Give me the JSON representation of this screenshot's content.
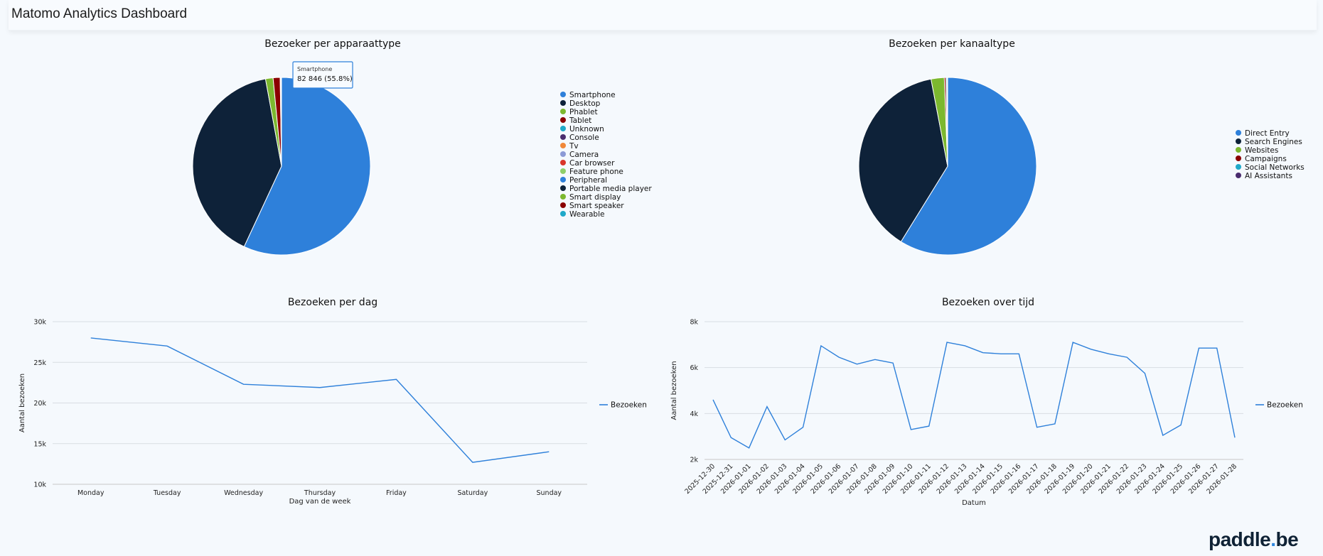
{
  "header": {
    "title": "Matomo Analytics Dashboard"
  },
  "footer": {
    "brand": "paddle",
    "dot": ".",
    "tld": "be"
  },
  "chart_data": [
    {
      "id": "device",
      "type": "pie",
      "title": "Bezoeker per apparaattype",
      "slices": [
        {
          "label": "Smartphone",
          "value": 82846,
          "percent": 55.8,
          "color": "#2e80da"
        },
        {
          "label": "Desktop",
          "value": 58500,
          "percent": 39.4,
          "color": "#0e2239"
        },
        {
          "label": "Phablet",
          "value": 2000,
          "percent": 1.35,
          "color": "#7cb82f"
        },
        {
          "label": "Tablet",
          "value": 1850,
          "percent": 1.25,
          "color": "#8b0000"
        },
        {
          "label": "Unknown",
          "value": 200,
          "percent": 0.13,
          "color": "#1fa9c9"
        },
        {
          "label": "Console",
          "value": 60,
          "percent": 0.04,
          "color": "#4a2c6e"
        },
        {
          "label": "Tv",
          "value": 40,
          "percent": 0.03,
          "color": "#f0883a"
        },
        {
          "label": "Camera",
          "value": 10,
          "percent": 0.01,
          "color": "#8c9ad6"
        },
        {
          "label": "Car browser",
          "value": 10,
          "percent": 0.01,
          "color": "#d9352a"
        },
        {
          "label": "Feature phone",
          "value": 10,
          "percent": 0.01,
          "color": "#8fcf6a"
        },
        {
          "label": "Peripheral",
          "value": 5,
          "percent": 0.0,
          "color": "#2e80da"
        },
        {
          "label": "Portable media player",
          "value": 5,
          "percent": 0.0,
          "color": "#0e2239"
        },
        {
          "label": "Smart display",
          "value": 5,
          "percent": 0.0,
          "color": "#7cb82f"
        },
        {
          "label": "Smart speaker",
          "value": 5,
          "percent": 0.0,
          "color": "#8b0000"
        },
        {
          "label": "Wearable",
          "value": 5,
          "percent": 0.0,
          "color": "#1fa9c9"
        }
      ],
      "tooltip": {
        "label": "Smartphone",
        "value": "82 846 (55.8%)"
      }
    },
    {
      "id": "channel",
      "type": "pie",
      "title": "Bezoeken per kanaaltype",
      "slices": [
        {
          "label": "Direct Entry",
          "value": 58.8,
          "color": "#2e80da"
        },
        {
          "label": "Search Engines",
          "value": 38.2,
          "color": "#0e2239"
        },
        {
          "label": "Websites",
          "value": 2.4,
          "color": "#7cb82f"
        },
        {
          "label": "Campaigns",
          "value": 0.3,
          "color": "#8b0000"
        },
        {
          "label": "Social Networks",
          "value": 0.2,
          "color": "#1fa9c9"
        },
        {
          "label": "AI Assistants",
          "value": 0.1,
          "color": "#4a2c6e"
        }
      ]
    },
    {
      "id": "perday",
      "type": "line",
      "title": "Bezoeken per dag",
      "categories": [
        "Monday",
        "Tuesday",
        "Wednesday",
        "Thursday",
        "Friday",
        "Saturday",
        "Sunday"
      ],
      "series": [
        {
          "name": "Bezoeken",
          "color": "#2e80da",
          "values": [
            28000,
            27000,
            22300,
            21900,
            22900,
            12700,
            14000
          ]
        }
      ],
      "xlabel": "Dag van de week",
      "ylabel": "Aantal bezoeken",
      "ylim": [
        10000,
        30000
      ],
      "yticks": [
        {
          "v": 10000,
          "t": "10k"
        },
        {
          "v": 15000,
          "t": "15k"
        },
        {
          "v": 20000,
          "t": "20k"
        },
        {
          "v": 25000,
          "t": "25k"
        },
        {
          "v": 30000,
          "t": "30k"
        }
      ],
      "legend": "right"
    },
    {
      "id": "overtime",
      "type": "line",
      "title": "Bezoeken over tijd",
      "categories": [
        "2025-12-30",
        "2025-12-31",
        "2026-01-01",
        "2026-01-02",
        "2026-01-03",
        "2026-01-04",
        "2026-01-05",
        "2026-01-06",
        "2026-01-07",
        "2026-01-08",
        "2026-01-09",
        "2026-01-10",
        "2026-01-11",
        "2026-01-12",
        "2026-01-13",
        "2026-01-14",
        "2026-01-15",
        "2026-01-16",
        "2026-01-17",
        "2026-01-18",
        "2026-01-19",
        "2026-01-20",
        "2026-01-21",
        "2026-01-22",
        "2026-01-23",
        "2026-01-24",
        "2026-01-25",
        "2026-01-26",
        "2026-01-27",
        "2026-01-28"
      ],
      "series": [
        {
          "name": "Bezoeken",
          "color": "#2e80da",
          "values": [
            4600,
            2950,
            2500,
            4300,
            2850,
            3400,
            6950,
            6450,
            6150,
            6350,
            6200,
            3300,
            3450,
            7100,
            6950,
            6650,
            6600,
            6600,
            3400,
            3550,
            7100,
            6800,
            6600,
            6450,
            5750,
            3050,
            3500,
            6850,
            6850,
            2950
          ]
        }
      ],
      "xlabel": "Datum",
      "ylabel": "Aantal bezoeken",
      "ylim": [
        2000,
        8000
      ],
      "yticks": [
        {
          "v": 2000,
          "t": "2k"
        },
        {
          "v": 4000,
          "t": "4k"
        },
        {
          "v": 6000,
          "t": "6k"
        },
        {
          "v": 8000,
          "t": "8k"
        }
      ],
      "legend": "right"
    }
  ]
}
